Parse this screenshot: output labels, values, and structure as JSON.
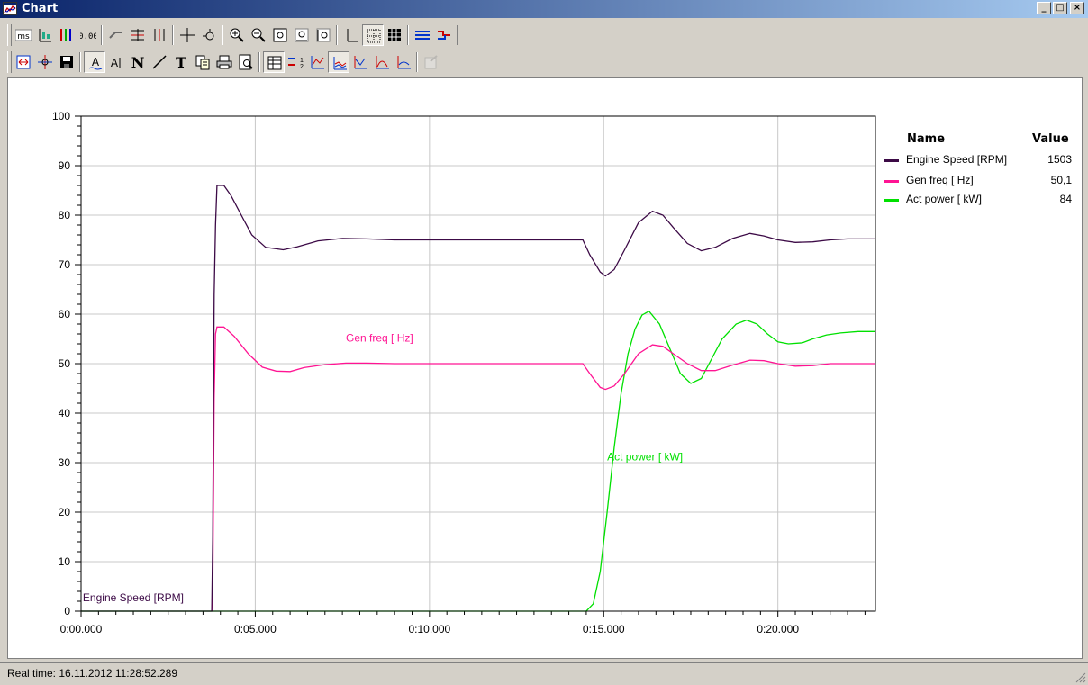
{
  "window": {
    "title": "Chart"
  },
  "toolbar1": [
    {
      "icon": "ms-units-icon"
    },
    {
      "icon": "axis-x-icon"
    },
    {
      "icon": "multi-axis-icon"
    },
    {
      "icon": "digital-counter-icon"
    },
    {
      "sep": true
    },
    {
      "icon": "hand-scroll-icon"
    },
    {
      "icon": "align-horizontal-icon"
    },
    {
      "icon": "align-vertical-icon"
    },
    {
      "sep": true
    },
    {
      "icon": "crosshair-icon"
    },
    {
      "icon": "cursor-point-icon"
    },
    {
      "sep": true
    },
    {
      "icon": "zoom-in-icon"
    },
    {
      "icon": "zoom-out-icon"
    },
    {
      "icon": "zoom-fit-icon"
    },
    {
      "icon": "zoom-x-icon"
    },
    {
      "icon": "zoom-y-icon"
    },
    {
      "sep": true
    },
    {
      "icon": "axes-icon"
    },
    {
      "icon": "grid-dotted-icon",
      "pressed": true
    },
    {
      "icon": "grid-solid-icon"
    },
    {
      "sep": true
    },
    {
      "icon": "lines-icon"
    },
    {
      "icon": "step-lines-icon"
    },
    {
      "sep": true
    }
  ],
  "toolbar2": [
    {
      "icon": "fit-width-icon"
    },
    {
      "icon": "snap-icon"
    },
    {
      "icon": "save-icon"
    },
    {
      "sep": true
    },
    {
      "icon": "font-icon",
      "pressed": true
    },
    {
      "icon": "text-cursor-icon"
    },
    {
      "icon": "bold-n-icon"
    },
    {
      "icon": "draw-line-icon"
    },
    {
      "icon": "text-t-icon"
    },
    {
      "icon": "copy-icon"
    },
    {
      "icon": "print-icon"
    },
    {
      "icon": "print-preview-icon"
    },
    {
      "sep": true
    },
    {
      "icon": "legend-table-icon",
      "pressed": true
    },
    {
      "icon": "legend-list-icon"
    },
    {
      "icon": "chart-type-1-icon"
    },
    {
      "icon": "chart-type-2-icon",
      "pressed": true
    },
    {
      "icon": "chart-type-3-icon"
    },
    {
      "icon": "chart-type-4-icon"
    },
    {
      "icon": "chart-type-5-icon"
    },
    {
      "sep": true
    },
    {
      "icon": "properties-icon",
      "disabled": true
    }
  ],
  "chart_data": {
    "type": "line",
    "x_unit": "seconds",
    "xlim": [
      0,
      22.8
    ],
    "ylim": [
      0,
      100
    ],
    "x_ticks": [
      {
        "x": 0,
        "label": "0:00.000"
      },
      {
        "x": 5,
        "label": "0:05.000"
      },
      {
        "x": 10,
        "label": "0:10.000"
      },
      {
        "x": 15,
        "label": "0:15.000"
      },
      {
        "x": 20,
        "label": "0:20.000"
      }
    ],
    "y_ticks": [
      0,
      10,
      20,
      30,
      40,
      50,
      60,
      70,
      80,
      90,
      100
    ],
    "grid": true,
    "legend": {
      "position": "right",
      "header_name": "Name",
      "header_value": "Value",
      "entries": [
        {
          "name": "Engine Speed [RPM]",
          "value": "1503",
          "color": "#3c0a46"
        },
        {
          "name": "Gen freq [ Hz]",
          "value": "50,1",
          "color": "#ff1493"
        },
        {
          "name": "Act power [ kW]",
          "value": "84",
          "color": "#00e000"
        }
      ]
    },
    "series": [
      {
        "name": "Engine Speed [RPM]",
        "color": "#3c0a46",
        "label_at": [
          0.05,
          2
        ],
        "points": [
          [
            0,
            0
          ],
          [
            3.75,
            0
          ],
          [
            3.78,
            15
          ],
          [
            3.82,
            64
          ],
          [
            3.86,
            78
          ],
          [
            3.9,
            86
          ],
          [
            4.1,
            86
          ],
          [
            4.3,
            84
          ],
          [
            4.6,
            80
          ],
          [
            4.9,
            76
          ],
          [
            5.3,
            73.5
          ],
          [
            5.8,
            73
          ],
          [
            6.2,
            73.6
          ],
          [
            6.8,
            74.8
          ],
          [
            7.5,
            75.3
          ],
          [
            8.2,
            75.2
          ],
          [
            9,
            75
          ],
          [
            10,
            75
          ],
          [
            12,
            75
          ],
          [
            14.0,
            75
          ],
          [
            14.4,
            75
          ],
          [
            14.6,
            72
          ],
          [
            14.9,
            68.5
          ],
          [
            15.05,
            67.7
          ],
          [
            15.3,
            69
          ],
          [
            15.6,
            73
          ],
          [
            16,
            78.5
          ],
          [
            16.4,
            80.8
          ],
          [
            16.7,
            80
          ],
          [
            17,
            77.5
          ],
          [
            17.4,
            74.3
          ],
          [
            17.8,
            72.8
          ],
          [
            18.2,
            73.5
          ],
          [
            18.7,
            75.3
          ],
          [
            19.2,
            76.3
          ],
          [
            19.6,
            75.8
          ],
          [
            20,
            75
          ],
          [
            20.5,
            74.5
          ],
          [
            21,
            74.6
          ],
          [
            21.5,
            75
          ],
          [
            22,
            75.2
          ],
          [
            22.8,
            75.2
          ]
        ]
      },
      {
        "name": "Gen freq [ Hz]",
        "color": "#ff1493",
        "label_at": [
          7.6,
          54.5
        ],
        "points": [
          [
            3.75,
            0
          ],
          [
            3.78,
            3
          ],
          [
            3.82,
            43
          ],
          [
            3.86,
            56
          ],
          [
            3.9,
            57.4
          ],
          [
            4.1,
            57.4
          ],
          [
            4.4,
            55.5
          ],
          [
            4.8,
            52
          ],
          [
            5.2,
            49.3
          ],
          [
            5.6,
            48.5
          ],
          [
            6,
            48.4
          ],
          [
            6.4,
            49.2
          ],
          [
            7,
            49.8
          ],
          [
            7.6,
            50.1
          ],
          [
            8.2,
            50.1
          ],
          [
            9,
            50
          ],
          [
            10,
            50
          ],
          [
            12,
            50
          ],
          [
            14,
            50
          ],
          [
            14.4,
            50
          ],
          [
            14.6,
            48
          ],
          [
            14.9,
            45.2
          ],
          [
            15.05,
            44.8
          ],
          [
            15.3,
            45.5
          ],
          [
            15.6,
            48
          ],
          [
            16,
            52
          ],
          [
            16.4,
            53.8
          ],
          [
            16.7,
            53.5
          ],
          [
            17,
            52
          ],
          [
            17.4,
            50
          ],
          [
            17.8,
            48.6
          ],
          [
            18.2,
            48.6
          ],
          [
            18.7,
            49.7
          ],
          [
            19.2,
            50.7
          ],
          [
            19.6,
            50.6
          ],
          [
            20,
            50
          ],
          [
            20.5,
            49.5
          ],
          [
            21,
            49.6
          ],
          [
            21.5,
            50
          ],
          [
            22.8,
            50
          ]
        ]
      },
      {
        "name": "Act power [ kW]",
        "color": "#00e000",
        "label_at": [
          15.1,
          30.5
        ],
        "points": [
          [
            0,
            0
          ],
          [
            14.5,
            0
          ],
          [
            14.7,
            1.5
          ],
          [
            14.9,
            8
          ],
          [
            15.1,
            20
          ],
          [
            15.3,
            33
          ],
          [
            15.5,
            44
          ],
          [
            15.7,
            52
          ],
          [
            15.9,
            57
          ],
          [
            16.1,
            59.8
          ],
          [
            16.3,
            60.6
          ],
          [
            16.6,
            58
          ],
          [
            16.9,
            53
          ],
          [
            17.2,
            48
          ],
          [
            17.5,
            46
          ],
          [
            17.8,
            47
          ],
          [
            18.1,
            51
          ],
          [
            18.4,
            55
          ],
          [
            18.8,
            58
          ],
          [
            19.1,
            58.8
          ],
          [
            19.4,
            58
          ],
          [
            19.7,
            56
          ],
          [
            20,
            54.4
          ],
          [
            20.3,
            54
          ],
          [
            20.7,
            54.2
          ],
          [
            21,
            55
          ],
          [
            21.4,
            55.8
          ],
          [
            21.8,
            56.2
          ],
          [
            22.3,
            56.5
          ],
          [
            22.8,
            56.5
          ]
        ]
      }
    ]
  },
  "status": {
    "text": "Real time: 16.11.2012 11:28:52.289"
  }
}
